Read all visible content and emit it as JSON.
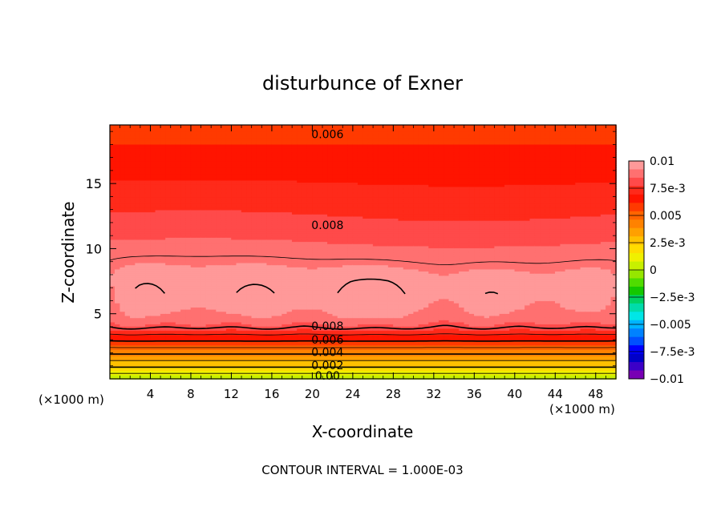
{
  "chart_data": {
    "type": "contour",
    "title": "disturbunce of Exner",
    "xlabel": "X-coordinate",
    "ylabel": "Z-coordinate",
    "x_unit_left": "(×1000 m)",
    "x_unit_right": "(×1000 m)",
    "xlim": [
      0,
      50
    ],
    "ylim": [
      0,
      19.5
    ],
    "x_ticks": [
      4,
      8,
      12,
      16,
      20,
      24,
      28,
      32,
      36,
      40,
      44,
      48
    ],
    "y_ticks": [
      5,
      10,
      15
    ],
    "footer": "CONTOUR INTERVAL = 1.000E-03",
    "contour_interval": 0.001,
    "contour_labels": [
      {
        "text": "0.006",
        "x": 21.5,
        "z": 18.8
      },
      {
        "text": "0.008",
        "x": 21.5,
        "z": 11.8
      },
      {
        "text": "0.008",
        "x": 21.5,
        "z": 4.05
      },
      {
        "text": "0.006",
        "x": 21.5,
        "z": 3.0
      },
      {
        "text": "0.004",
        "x": 21.5,
        "z": 2.05
      },
      {
        "text": "0.002",
        "x": 21.5,
        "z": 1.05
      },
      {
        "text": "0.00",
        "x": 21.5,
        "z": 0.25
      }
    ],
    "colorbar": {
      "min": -0.01,
      "max": 0.01,
      "labels": [
        "0.01",
        "7.5e-3",
        "0.005",
        "2.5e-3",
        "0",
        "−2.5e-3",
        "−0.005",
        "−7.5e-3",
        "−0.01"
      ],
      "colors": [
        "#ff9999",
        "#ff7070",
        "#ff4a4a",
        "#ff2a1a",
        "#ff1400",
        "#ff3a00",
        "#ff6400",
        "#ff8200",
        "#ffa000",
        "#ffc000",
        "#ffdc00",
        "#f0f000",
        "#c8f000",
        "#96e600",
        "#50dc00",
        "#14c800",
        "#00d264",
        "#00dcaa",
        "#00e6e6",
        "#00b4ff",
        "#0082ff",
        "#0050ff",
        "#0000ff",
        "#0000c8",
        "#3c00c8",
        "#7800b4"
      ]
    },
    "profile": {
      "z": [
        0.0,
        0.5,
        1.0,
        1.5,
        2.0,
        2.5,
        3.0,
        3.5,
        4.0,
        4.6,
        5.5,
        6.5,
        7.5,
        8.5,
        10.0,
        11.5,
        13.0,
        15.0,
        17.0,
        19.5
      ],
      "value": [
        0.0,
        0.0012,
        0.0022,
        0.0032,
        0.0042,
        0.0052,
        0.0062,
        0.0072,
        0.0082,
        0.009,
        0.0096,
        0.01,
        0.0098,
        0.0093,
        0.00865,
        0.00805,
        0.00755,
        0.00695,
        0.0064,
        0.0058
      ]
    }
  }
}
